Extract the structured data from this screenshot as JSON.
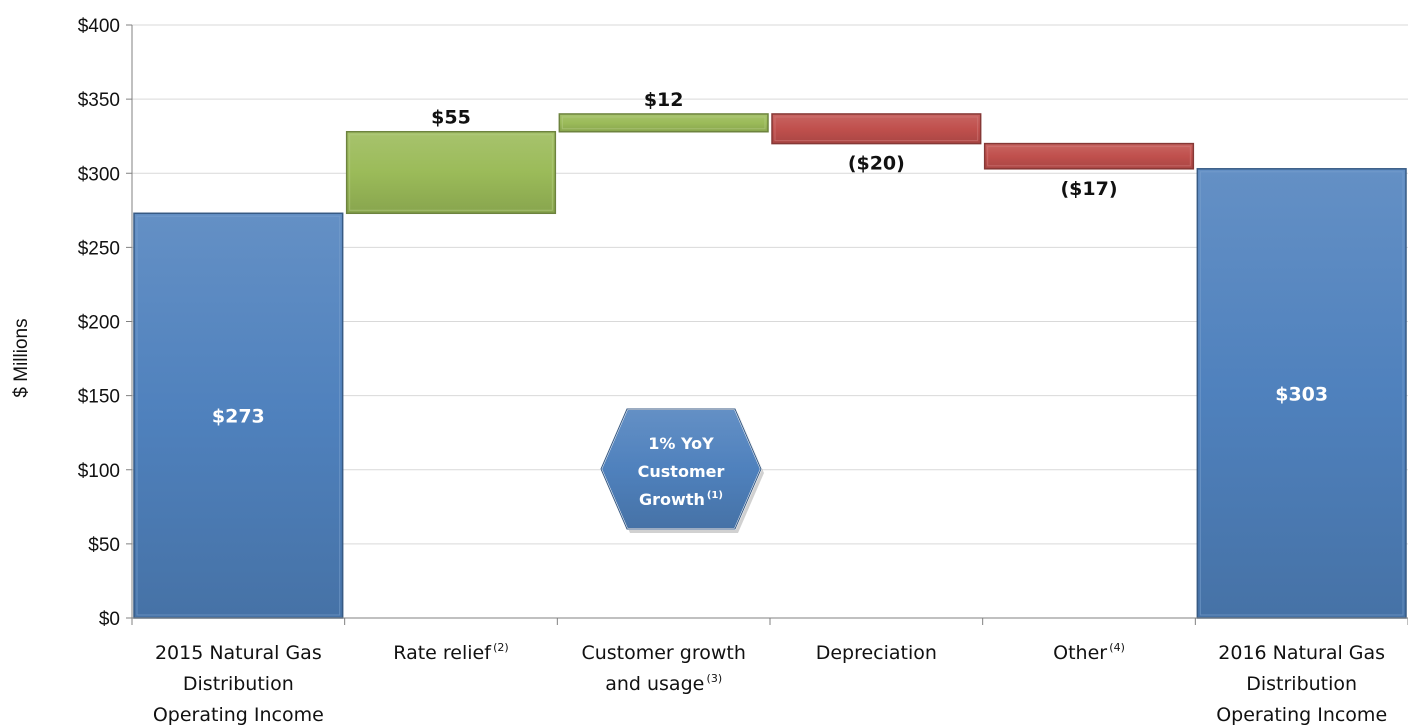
{
  "chart_data": {
    "type": "bar",
    "subtype": "waterfall",
    "title": "",
    "ylabel": "$ Millions",
    "xlabel": "",
    "ylim": [
      0,
      400
    ],
    "y_ticks": [
      "$0",
      "$50",
      "$100",
      "$150",
      "$200",
      "$250",
      "$300",
      "$350",
      "$400"
    ],
    "grid": true,
    "categories": [
      {
        "lines": [
          "2015 Natural Gas",
          "Distribution",
          "Operating Income"
        ],
        "sup": ""
      },
      {
        "lines": [
          "Rate relief"
        ],
        "sup": "(2)"
      },
      {
        "lines": [
          "Customer growth",
          "and usage"
        ],
        "sup": "(3)"
      },
      {
        "lines": [
          "Depreciation"
        ],
        "sup": ""
      },
      {
        "lines": [
          "Other"
        ],
        "sup": "(4)"
      },
      {
        "lines": [
          "2016 Natural Gas",
          "Distribution",
          "Operating Income"
        ],
        "sup": ""
      }
    ],
    "bars": [
      {
        "kind": "total",
        "start": 0,
        "end": 273,
        "label": "$273"
      },
      {
        "kind": "increase",
        "start": 273,
        "end": 328,
        "label": "$55"
      },
      {
        "kind": "increase",
        "start": 328,
        "end": 340,
        "label": "$12"
      },
      {
        "kind": "decrease",
        "start": 340,
        "end": 320,
        "label": "($20)"
      },
      {
        "kind": "decrease",
        "start": 320,
        "end": 303,
        "label": "($17)"
      },
      {
        "kind": "total",
        "start": 0,
        "end": 303,
        "label": "$303"
      }
    ],
    "colors": {
      "total": "#4f81bd",
      "increase": "#9bbb59",
      "decrease": "#c0504d",
      "grid": "#d9d9d9",
      "axis": "#808080"
    },
    "callout": {
      "lines": [
        "1% YoY",
        "Customer",
        "Growth"
      ],
      "sup": "(1)",
      "shape": "hexagon",
      "color": "#4f81bd"
    }
  }
}
